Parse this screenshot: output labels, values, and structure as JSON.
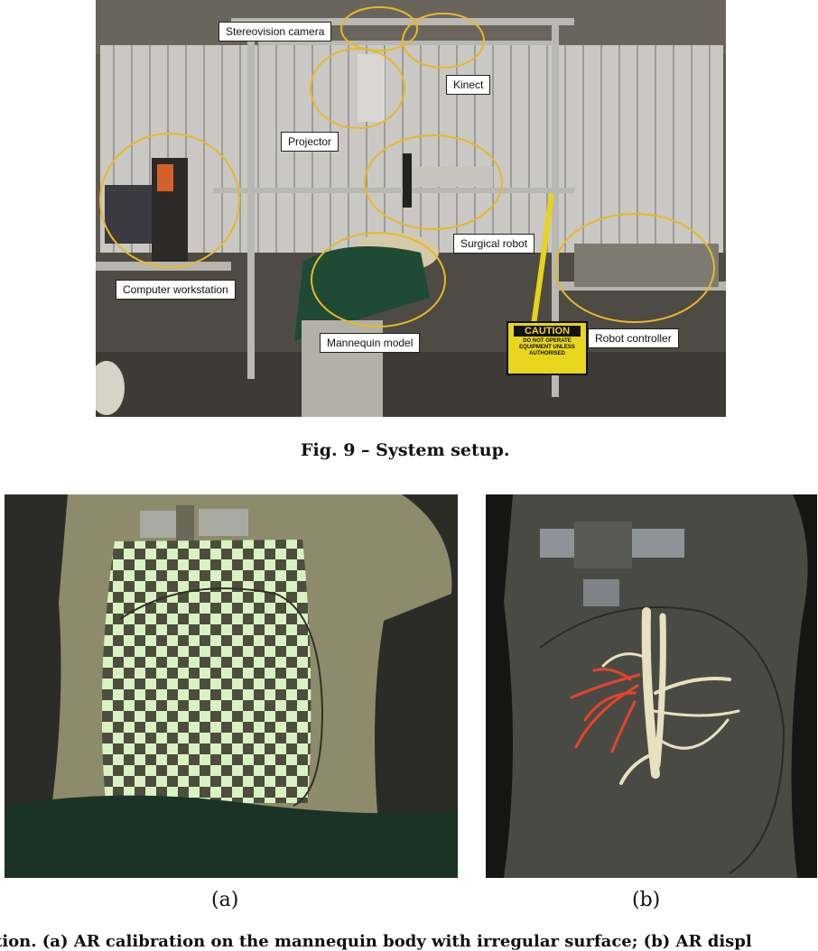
{
  "figure9": {
    "labels": {
      "stereovision_camera": "Stereovision camera",
      "kinect": "Kinect",
      "projector": "Projector",
      "surgical_robot": "Surgical robot",
      "computer_workstation": "Computer workstation",
      "mannequin_model": "Mannequin model",
      "robot_controller": "Robot controller"
    },
    "caution_sign": {
      "title": "CAUTION",
      "body": "DO NOT OPERATE EQUIPMENT UNLESS AUTHORISED"
    },
    "caption": "Fig. 9 – System setup.",
    "highlight_color": "#e8b928"
  },
  "figure10": {
    "panel_a_label": "(a)",
    "panel_b_label": "(b)",
    "caption": "tion. (a) AR calibration on the mannequin body with irregular surface; (b) AR displ"
  }
}
